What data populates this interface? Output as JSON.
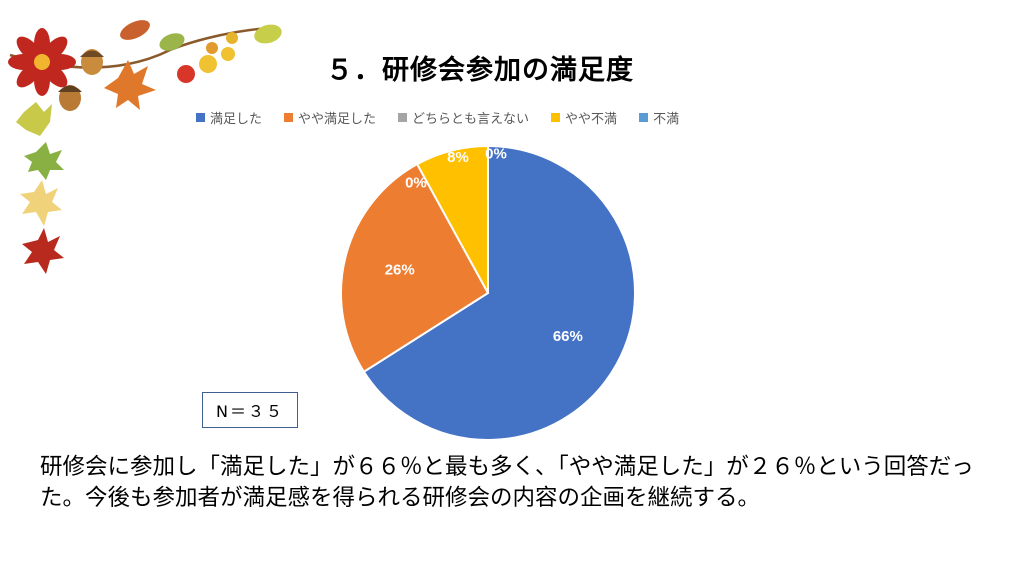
{
  "slide": {
    "title": "５．研修会参加の満足度",
    "sample_label": "N＝３５",
    "summary": "研修会に参加し「満足した」が６６％と最も多く、「やや満足した」が２６％という回答だった。今後も参加者が満足感を得られる研修会の内容の企画を継続する。"
  },
  "chart_data": {
    "type": "pie",
    "title": "５．研修会参加の満足度",
    "categories": [
      "満足した",
      "やや満足した",
      "どちらとも言えない",
      "やや不満",
      "不満"
    ],
    "values": [
      66,
      26,
      0,
      8,
      0
    ],
    "data_labels": [
      "66%",
      "26%",
      "0%",
      "8%",
      "0%"
    ],
    "colors": [
      "#4472C4",
      "#ED7D31",
      "#A5A5A5",
      "#FFC000",
      "#5B9BD5"
    ],
    "legend_position": "top",
    "start_angle": "12 o'clock",
    "direction": "clockwise"
  }
}
